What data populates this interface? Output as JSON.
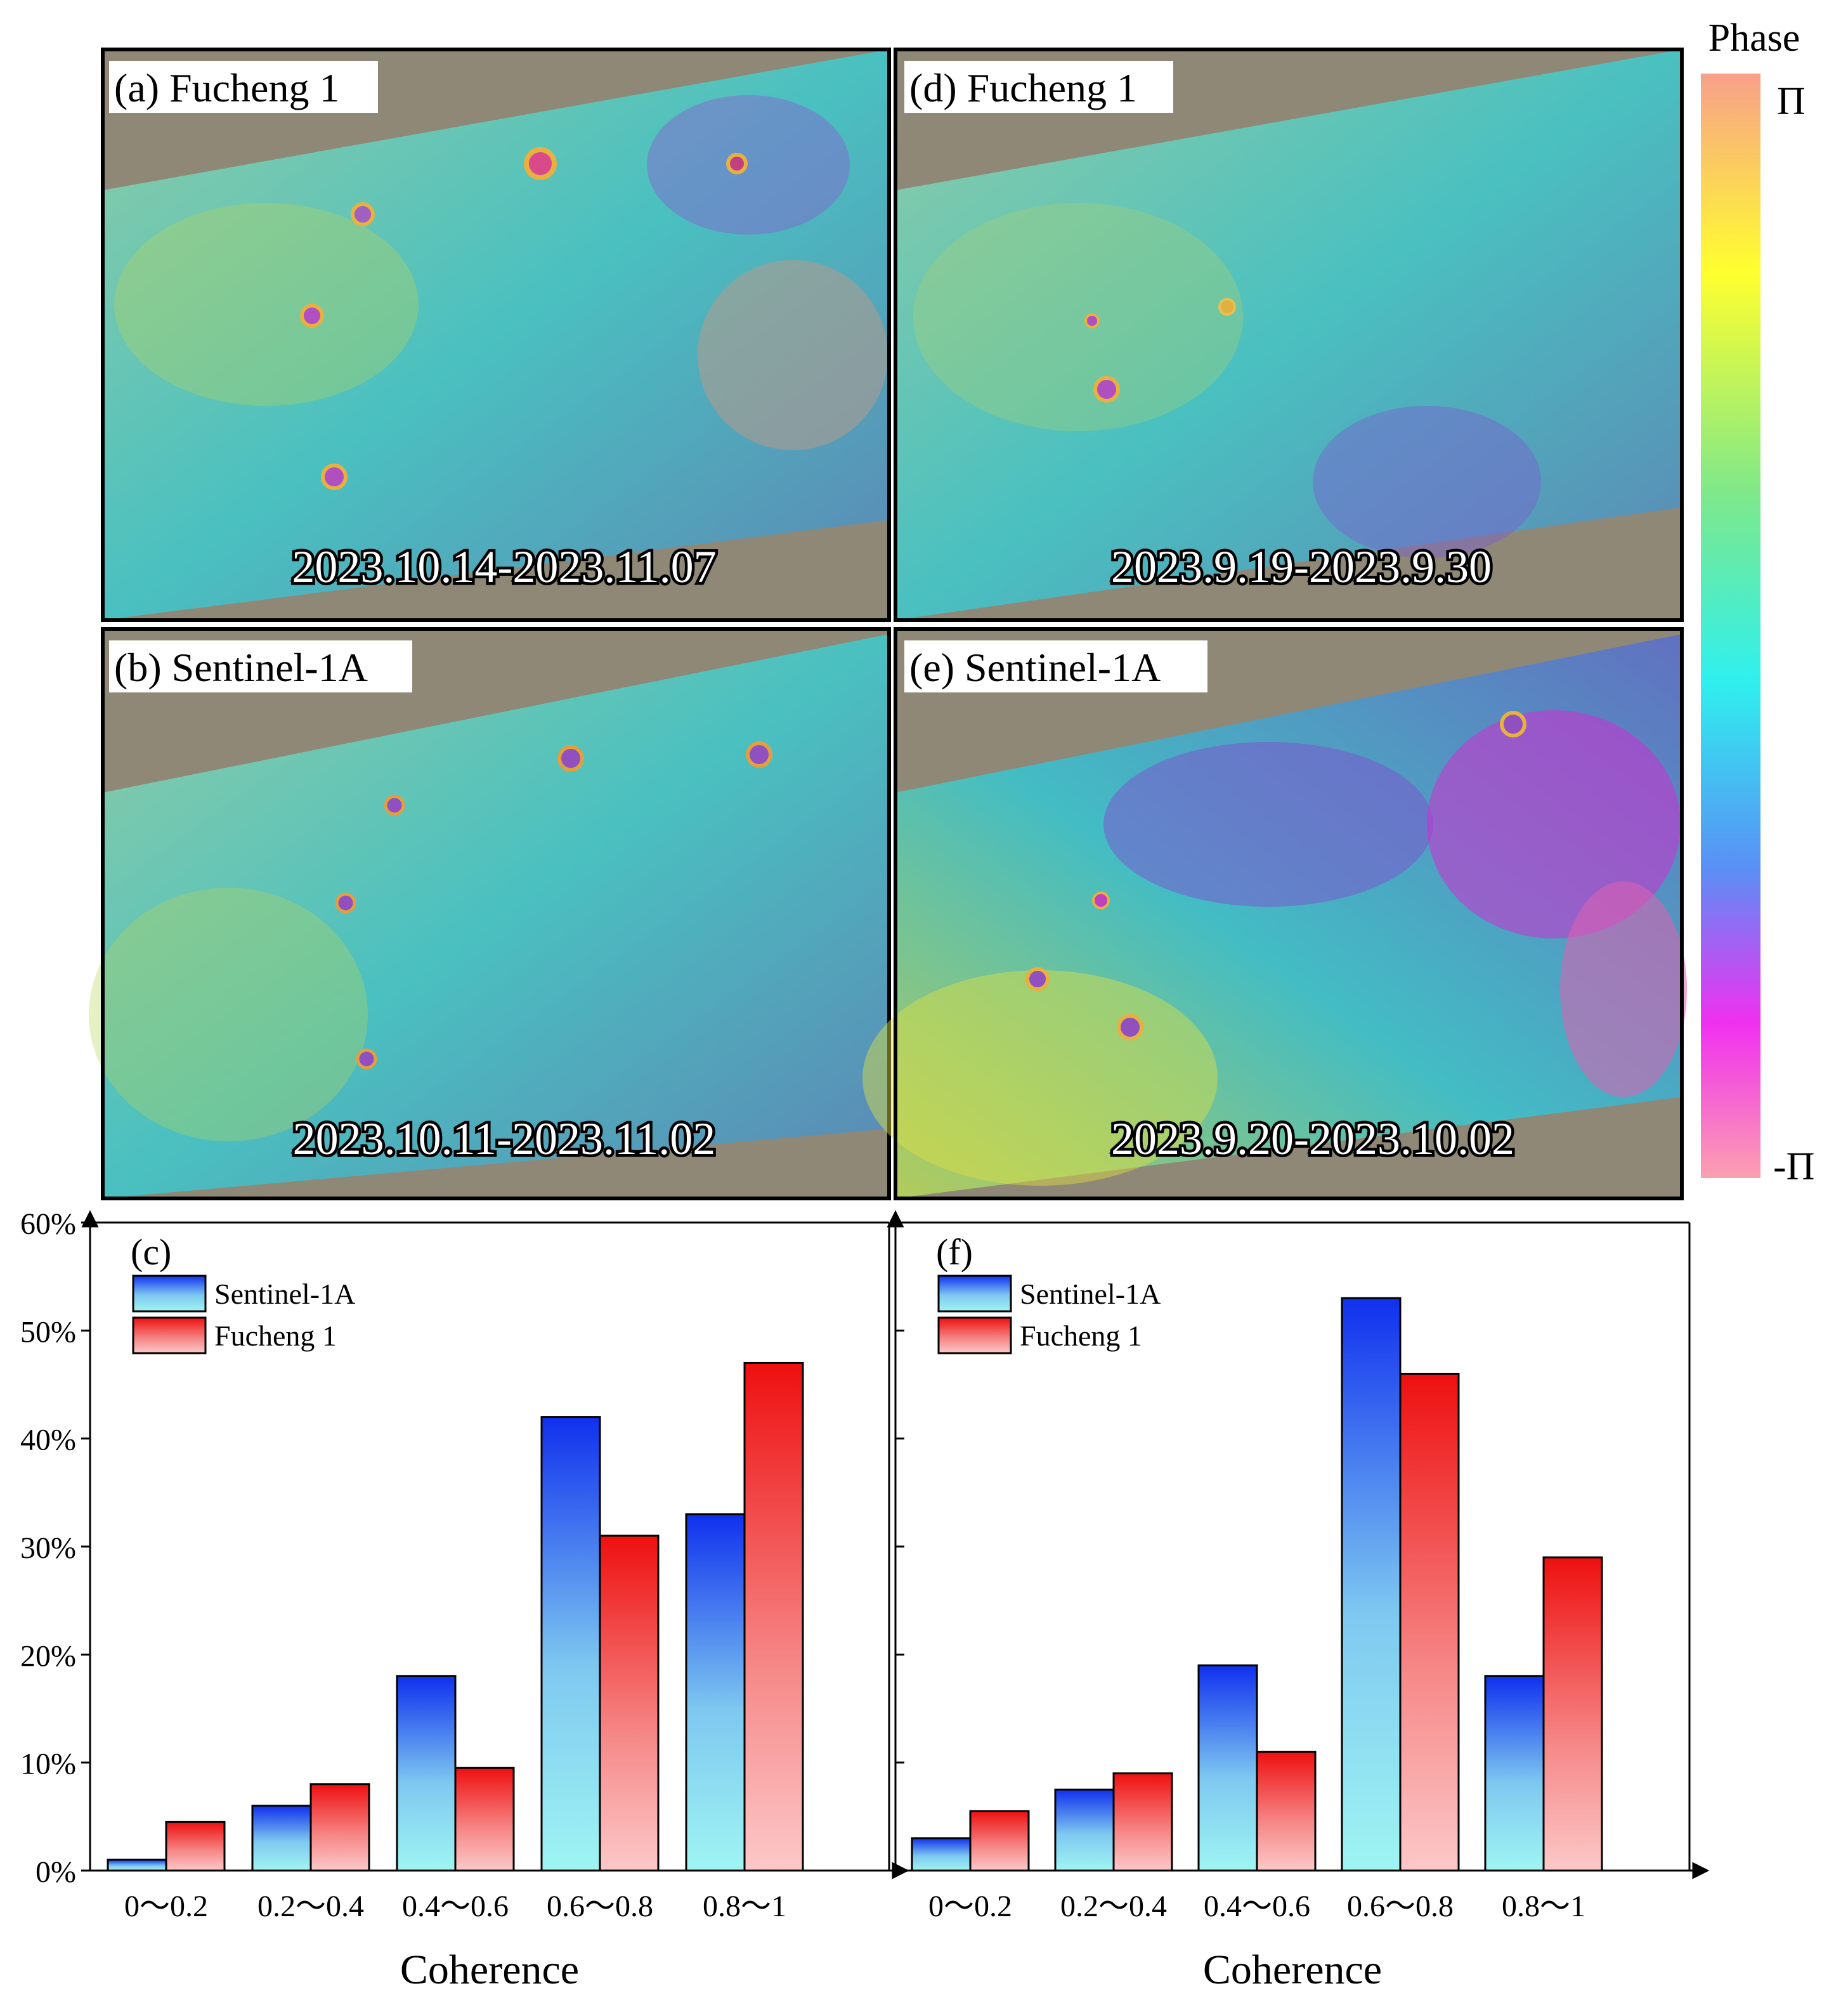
{
  "maps": [
    {
      "label": "(a) Fucheng 1",
      "dates": "2023.10.14-2023.11.07"
    },
    {
      "label": "(b) Sentinel-1A",
      "dates": "2023.10.11-2023.11.02"
    },
    {
      "label": "(d) Fucheng 1",
      "dates": "2023.9.19-2023.9.30"
    },
    {
      "label": "(e) Sentinel-1A",
      "dates": "2023.9.20-2023.10.02"
    }
  ],
  "colorbar": {
    "title": "Phase",
    "top_label": "Π",
    "bottom_label": "-Π"
  },
  "colors": {
    "sentinel": "#1a3bf0",
    "fucheng": "#ee1c1c",
    "axis": "#000000"
  },
  "chart_data": [
    {
      "type": "bar",
      "panel": "(c)",
      "categories": [
        "0～0.2",
        "0.2～0.4",
        "0.4～0.6",
        "0.6～0.8",
        "0.8～1"
      ],
      "series": [
        {
          "name": "Sentinel-1A",
          "values": [
            1,
            6,
            18,
            42,
            33
          ]
        },
        {
          "name": "Fucheng 1",
          "values": [
            4.5,
            8,
            9.5,
            31,
            47
          ]
        }
      ],
      "xlabel": "Coherence",
      "ylabel": "",
      "ylim": [
        0,
        60
      ],
      "yticks": [
        "0%",
        "10%",
        "20%",
        "30%",
        "40%",
        "50%",
        "60%"
      ],
      "legend": "top-left"
    },
    {
      "type": "bar",
      "panel": "(f)",
      "categories": [
        "0～0.2",
        "0.2～0.4",
        "0.4～0.6",
        "0.6～0.8",
        "0.8～1"
      ],
      "series": [
        {
          "name": "Sentinel-1A",
          "values": [
            3,
            7.5,
            19,
            53,
            18
          ]
        },
        {
          "name": "Fucheng 1",
          "values": [
            5.5,
            9,
            11,
            46,
            29
          ]
        }
      ],
      "xlabel": "Coherence",
      "ylabel": "",
      "ylim": [
        0,
        60
      ],
      "yticks": [],
      "legend": "top-left"
    }
  ]
}
